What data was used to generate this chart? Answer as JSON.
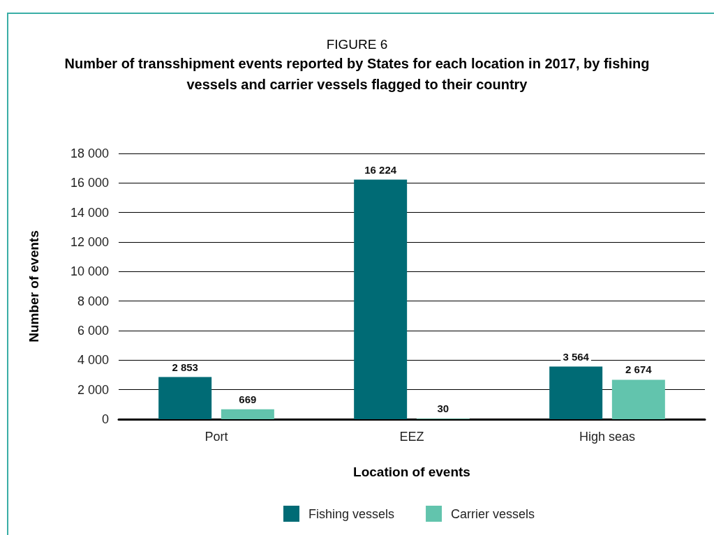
{
  "chart_data": {
    "type": "bar",
    "title": "FIGURE 6",
    "subtitle": "Number of transshipment events reported by States for each location in 2017, by fishing vessels and carrier vessels flagged to their country",
    "xlabel": "Location of events",
    "ylabel": "Number of events",
    "categories": [
      "Port",
      "EEZ",
      "High seas"
    ],
    "series": [
      {
        "name": "Fishing vessels",
        "color": "#006b75",
        "values": [
          2853,
          16224,
          3564
        ],
        "value_labels": [
          "2 853",
          "16 224",
          "3 564"
        ]
      },
      {
        "name": "Carrier vessels",
        "color": "#62c4ad",
        "values": [
          669,
          30,
          2674
        ],
        "value_labels": [
          "669",
          "30",
          "2 674"
        ]
      }
    ],
    "ylim": [
      0,
      18000
    ],
    "yticks": [
      0,
      {
        "value": 2000,
        "label": "2 000"
      },
      {
        "value": 4000,
        "label": "4 000"
      },
      {
        "value": 6000,
        "label": "6 000"
      },
      {
        "value": 8000,
        "label": "8 000"
      },
      {
        "value": 10000,
        "label": "10 000"
      },
      {
        "value": 12000,
        "label": "12 000"
      },
      {
        "value": 14000,
        "label": "14 000"
      },
      {
        "value": 16000,
        "label": "16 000"
      },
      {
        "value": 18000,
        "label": "18 000"
      }
    ],
    "grid": "y",
    "legend": "bottom"
  }
}
